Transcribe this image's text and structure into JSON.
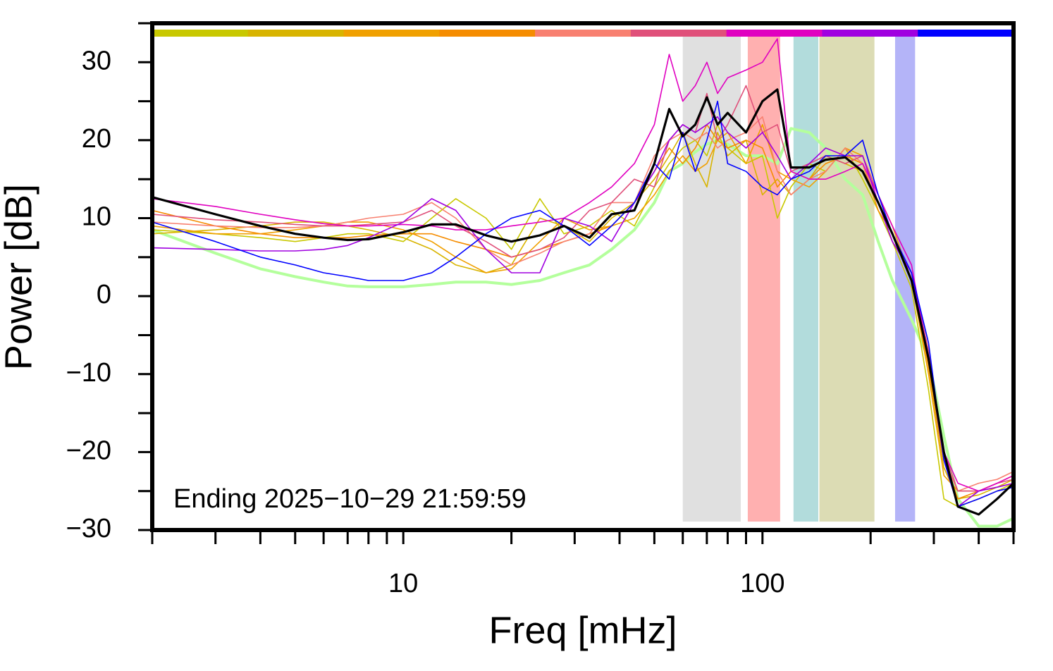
{
  "chart_data": {
    "type": "line",
    "xlabel": "Freq [mHz]",
    "ylabel": "Power [dB]",
    "annotation": "Ending 2025−10−29 21:59:59",
    "xscale": "log",
    "xlim": [
      2,
      500
    ],
    "ylim": [
      -30,
      35
    ],
    "xticks": [
      10,
      100
    ],
    "xminorticks": [
      2,
      3,
      4,
      5,
      6,
      7,
      8,
      9,
      20,
      30,
      40,
      50,
      60,
      70,
      80,
      90,
      200,
      300,
      400,
      500
    ],
    "yticks": [
      {
        "value": -30,
        "label": "−30"
      },
      {
        "value": -20,
        "label": "−20"
      },
      {
        "value": -10,
        "label": "−10"
      },
      0,
      10,
      20,
      30
    ],
    "yminorticks": [
      -25,
      -15,
      -5,
      5,
      15,
      25,
      35
    ],
    "color_bar": [
      "#c8c800",
      "#d8b400",
      "#f0a000",
      "#f58c00",
      "#f88070",
      "#e0507a",
      "#e000c0",
      "#a000e0",
      "#0000ff"
    ],
    "bands": [
      {
        "x": [
          60,
          87
        ],
        "color": "#e0e0e0"
      },
      {
        "x": [
          91,
          112
        ],
        "color": "#ffb0b0"
      },
      {
        "x": [
          122,
          143
        ],
        "color": "#b2dcdc"
      },
      {
        "x": [
          144,
          205
        ],
        "color": "#dcdcb4"
      },
      {
        "x": [
          234,
          266
        ],
        "color": "#b4b4f8"
      }
    ],
    "x": [
      2,
      3,
      4,
      5,
      6,
      7,
      8,
      10,
      12,
      14,
      17,
      20,
      24,
      28,
      33,
      38,
      44,
      50,
      55,
      60,
      65,
      70,
      75,
      80,
      90,
      100,
      110,
      120,
      135,
      150,
      170,
      190,
      210,
      230,
      260,
      290,
      320,
      350,
      400,
      450,
      500
    ],
    "series": [
      {
        "color": "#b4ff9c",
        "width": 4,
        "values": [
          8.5,
          5.5,
          3.5,
          2.5,
          1.8,
          1.3,
          1.2,
          1.2,
          1.5,
          1.8,
          1.8,
          1.5,
          2,
          3,
          4,
          6,
          8.5,
          12,
          16,
          17,
          18.5,
          19.5,
          20,
          19.5,
          18,
          18,
          17,
          21.5,
          21,
          19,
          15,
          13,
          7,
          2,
          -3,
          -8,
          -18,
          -26,
          -29.5,
          -29.5,
          -28.5
        ]
      },
      {
        "color": "#c8c800",
        "width": 1.6,
        "values": [
          8.5,
          8,
          7.5,
          7,
          7.5,
          8,
          8,
          7,
          10,
          12.5,
          10,
          6,
          12.5,
          8,
          9,
          11,
          9,
          14,
          17,
          19,
          20,
          18,
          22,
          19,
          17,
          18,
          10,
          14,
          17,
          16,
          19,
          15,
          11,
          7,
          1,
          -12,
          -26,
          -27,
          -26,
          -25,
          -24
        ]
      },
      {
        "color": "#d8b400",
        "width": 1.6,
        "values": [
          8,
          8.5,
          9,
          9.5,
          9.5,
          9,
          8.5,
          7.5,
          6,
          4,
          3,
          4,
          10,
          9,
          7,
          10,
          12,
          15,
          18,
          21,
          17,
          14,
          21,
          18,
          20,
          13,
          15,
          13,
          15,
          18,
          17,
          16,
          12,
          8,
          3,
          -9,
          -22,
          -26,
          -25.5,
          -24.5,
          -23.5
        ]
      },
      {
        "color": "#f0a000",
        "width": 1.6,
        "values": [
          9,
          8,
          8,
          8.5,
          9,
          9.5,
          9.5,
          8.5,
          7,
          5,
          3,
          3.5,
          7,
          10,
          8.5,
          9,
          10,
          13,
          16,
          18,
          16,
          17,
          20,
          21,
          17,
          22,
          16,
          15,
          14,
          16,
          19,
          18,
          13,
          9,
          2,
          -10,
          -23,
          -25,
          -25,
          -24,
          -23
        ]
      },
      {
        "color": "#f58c00",
        "width": 1.6,
        "values": [
          11,
          9,
          8,
          7.5,
          7.5,
          7.5,
          7.8,
          8,
          8,
          7,
          6,
          5,
          6,
          7,
          8,
          9,
          12,
          16,
          19,
          17,
          19,
          22,
          20,
          19,
          20,
          19,
          14,
          16,
          15,
          17,
          18,
          17,
          11,
          8,
          2,
          -9,
          -21,
          -26,
          -25,
          -24.5,
          -24
        ]
      },
      {
        "color": "#f88070",
        "width": 1.6,
        "values": [
          9.5,
          9,
          8.8,
          8.8,
          9,
          9.5,
          10,
          10.5,
          12,
          10,
          6,
          4,
          5.5,
          7,
          8,
          12,
          12,
          18,
          20,
          21,
          20,
          21,
          19,
          20,
          21,
          23,
          16,
          13,
          15,
          16,
          19,
          17,
          12,
          7,
          3,
          -8,
          -21,
          -25,
          -24,
          -23.5,
          -22.5
        ]
      },
      {
        "color": "#e0507a",
        "width": 1.6,
        "values": [
          10.5,
          9.8,
          9.5,
          9.2,
          9,
          9,
          9.2,
          9.5,
          11,
          9,
          7,
          5,
          6,
          7.5,
          11,
          12,
          15,
          14,
          20,
          22,
          21,
          26,
          20,
          22,
          27,
          21,
          22,
          16,
          17,
          18,
          17,
          18,
          13,
          8,
          3,
          -7,
          -20,
          -25,
          -25,
          -24,
          -23.5
        ]
      },
      {
        "color": "#e000c0",
        "width": 1.6,
        "values": [
          12.5,
          11.5,
          10.5,
          9.8,
          9.3,
          9,
          9,
          9.2,
          9,
          8.5,
          8.5,
          9,
          9.5,
          10,
          12,
          14,
          17,
          22,
          31,
          25,
          27,
          30,
          26,
          28,
          29,
          30,
          33,
          16,
          15,
          15,
          16,
          17,
          13,
          9,
          4,
          -8,
          -20,
          -24,
          -25,
          -24,
          -23
        ]
      },
      {
        "color": "#a000e0",
        "width": 1.6,
        "values": [
          6.2,
          6,
          5.8,
          5.8,
          6,
          6.5,
          7.5,
          9.5,
          12.5,
          11,
          6,
          3,
          3,
          10,
          9,
          7,
          12,
          16,
          20,
          22,
          21,
          22,
          23,
          21,
          19,
          21,
          18,
          15,
          17,
          19,
          18,
          18,
          12,
          7,
          3,
          -8,
          -21,
          -27,
          -25,
          -24.5,
          -24
        ]
      },
      {
        "color": "#0000ff",
        "width": 1.6,
        "values": [
          9.5,
          7,
          5,
          4,
          3,
          2.5,
          2,
          2,
          3,
          5,
          8,
          10,
          11,
          9,
          6.5,
          9,
          12,
          17,
          15,
          21,
          16,
          20,
          25,
          17,
          16,
          14,
          13,
          15,
          16,
          18,
          18,
          20,
          13,
          8,
          3,
          -6,
          -21,
          -27,
          -26,
          -25,
          -24.5
        ]
      },
      {
        "color": "#000000",
        "width": 3.2,
        "values": [
          12.7,
          10.5,
          9,
          8,
          7.5,
          7.2,
          7.3,
          8.2,
          9.2,
          9.2,
          7.8,
          7,
          7.8,
          9,
          7.5,
          10.5,
          11,
          17,
          24,
          20.5,
          22,
          25.5,
          22,
          23.5,
          21,
          25,
          26.5,
          16.5,
          16.5,
          17.5,
          17.8,
          16,
          12,
          8,
          2,
          -8,
          -20,
          -27,
          -28,
          -26,
          -24
        ]
      }
    ]
  }
}
